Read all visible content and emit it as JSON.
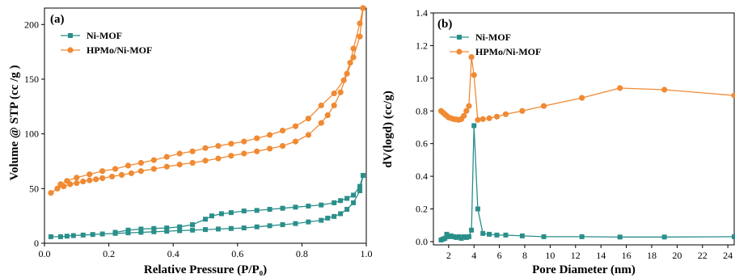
{
  "colors": {
    "ni_mof": "#2a8f8a",
    "hpmo_ni_mof": "#f08a33"
  },
  "chart_data": [
    {
      "panel": "(a)",
      "type": "line",
      "xlabel": "Relative Pressure (P/P₀)",
      "ylabel": "Volume @ STP (cc /g )",
      "xlim": [
        0,
        1.0
      ],
      "ylim": [
        0,
        215
      ],
      "xticks": [
        "0.0",
        "0.2",
        "0.4",
        "0.6",
        "0.8",
        "1.0"
      ],
      "yticks": [
        "0",
        "50",
        "100",
        "150",
        "200"
      ],
      "legend_position": "top-left",
      "series": [
        {
          "name": "Ni-MOF",
          "marker": "square",
          "color": "#2a8f8a",
          "adsorption": {
            "x": [
              0.02,
              0.05,
              0.07,
              0.09,
              0.12,
              0.15,
              0.18,
              0.22,
              0.26,
              0.3,
              0.34,
              0.38,
              0.42,
              0.46,
              0.5,
              0.54,
              0.58,
              0.62,
              0.66,
              0.7,
              0.74,
              0.78,
              0.82,
              0.86,
              0.88,
              0.9,
              0.92,
              0.94,
              0.96,
              0.98,
              0.99
            ],
            "y": [
              6,
              6,
              6.5,
              7,
              7.5,
              8,
              8.5,
              9,
              9.5,
              10,
              10.5,
              11,
              11.5,
              12,
              12.5,
              13,
              13.5,
              14,
              15,
              16,
              17,
              18,
              19.5,
              21,
              23,
              24.5,
              27,
              31,
              37,
              48,
              62
            ]
          },
          "desorption": {
            "x": [
              0.99,
              0.98,
              0.96,
              0.94,
              0.92,
              0.9,
              0.86,
              0.82,
              0.78,
              0.74,
              0.7,
              0.66,
              0.62,
              0.58,
              0.55,
              0.52,
              0.5,
              0.46,
              0.42,
              0.38,
              0.34,
              0.3,
              0.26,
              0.22
            ],
            "y": [
              62,
              52,
              44,
              41,
              39,
              37,
              35,
              34,
              33,
              32,
              31,
              30,
              29.5,
              28,
              27,
              25,
              22,
              17,
              15,
              14,
              13.5,
              13,
              12,
              10
            ]
          }
        },
        {
          "name": "HPMo/Ni-MOF",
          "marker": "circle",
          "color": "#f08a33",
          "adsorption": {
            "x": [
              0.02,
              0.04,
              0.06,
              0.08,
              0.1,
              0.12,
              0.14,
              0.16,
              0.18,
              0.21,
              0.24,
              0.27,
              0.3,
              0.34,
              0.38,
              0.42,
              0.46,
              0.5,
              0.54,
              0.58,
              0.62,
              0.66,
              0.7,
              0.74,
              0.78,
              0.82,
              0.86,
              0.88,
              0.9,
              0.92,
              0.94,
              0.96,
              0.98,
              0.99
            ],
            "y": [
              46,
              50,
              52,
              54,
              55,
              56.5,
              57.5,
              58.5,
              59.5,
              61,
              62.5,
              64,
              66,
              68,
              70,
              72,
              73.5,
              75.5,
              77.5,
              80,
              82,
              84,
              86.5,
              89,
              93,
              99,
              110,
              117,
              126,
              138,
              155,
              170,
              189,
              215
            ]
          },
          "desorption": {
            "x": [
              0.99,
              0.98,
              0.96,
              0.95,
              0.93,
              0.9,
              0.86,
              0.82,
              0.78,
              0.74,
              0.7,
              0.66,
              0.62,
              0.58,
              0.54,
              0.5,
              0.46,
              0.42,
              0.38,
              0.34,
              0.3,
              0.26,
              0.22,
              0.18,
              0.14,
              0.1,
              0.07,
              0.05
            ],
            "y": [
              215,
              201,
              178,
              165,
              149,
              137,
              126,
              114,
              107,
              103,
              99,
              96,
              93,
              91,
              89,
              87,
              84,
              82,
              79,
              76,
              73.5,
              71,
              68,
              66,
              63,
              60,
              57,
              54
            ]
          }
        }
      ]
    },
    {
      "panel": "(b)",
      "type": "line",
      "xlabel": "Pore Diameter (nm)",
      "ylabel": "dV(logd)  (cc/g)",
      "xlim": [
        0.8,
        24.5
      ],
      "ylim": [
        -0.02,
        1.4
      ],
      "xticks": [
        "2",
        "4",
        "6",
        "8",
        "10",
        "12",
        "14",
        "16",
        "18",
        "20",
        "22",
        "24"
      ],
      "yticks": [
        "0.0",
        "0.2",
        "0.4",
        "0.6",
        "0.8",
        "1.0",
        "1.2",
        "1.4"
      ],
      "legend_position": "top-left",
      "series": [
        {
          "name": "Ni-MOF",
          "marker": "square",
          "color": "#2a8f8a",
          "x": [
            1.4,
            1.55,
            1.7,
            1.85,
            2.0,
            2.2,
            2.4,
            2.6,
            2.8,
            3.0,
            3.2,
            3.4,
            3.6,
            3.8,
            4.0,
            4.3,
            4.7,
            5.2,
            5.8,
            6.5,
            7.8,
            9.5,
            12.5,
            15.5,
            19.0,
            24.5
          ],
          "y": [
            0.01,
            0.015,
            0.02,
            0.045,
            0.03,
            0.035,
            0.03,
            0.025,
            0.03,
            0.02,
            0.03,
            0.025,
            0.03,
            0.07,
            0.71,
            0.2,
            0.05,
            0.045,
            0.04,
            0.04,
            0.035,
            0.03,
            0.03,
            0.028,
            0.028,
            0.03
          ]
        },
        {
          "name": "HPMo/Ni-MOF",
          "marker": "circle",
          "color": "#f08a33",
          "x": [
            1.4,
            1.55,
            1.7,
            1.85,
            2.0,
            2.2,
            2.4,
            2.6,
            2.8,
            3.0,
            3.2,
            3.4,
            3.6,
            3.8,
            4.0,
            4.3,
            4.7,
            5.2,
            5.8,
            6.5,
            7.8,
            9.5,
            12.5,
            15.5,
            19.0,
            24.5
          ],
          "y": [
            0.8,
            0.79,
            0.78,
            0.77,
            0.76,
            0.755,
            0.75,
            0.748,
            0.745,
            0.75,
            0.77,
            0.8,
            0.83,
            1.13,
            1.02,
            0.745,
            0.75,
            0.755,
            0.765,
            0.78,
            0.8,
            0.83,
            0.88,
            0.94,
            0.93,
            0.895
          ]
        }
      ]
    }
  ]
}
